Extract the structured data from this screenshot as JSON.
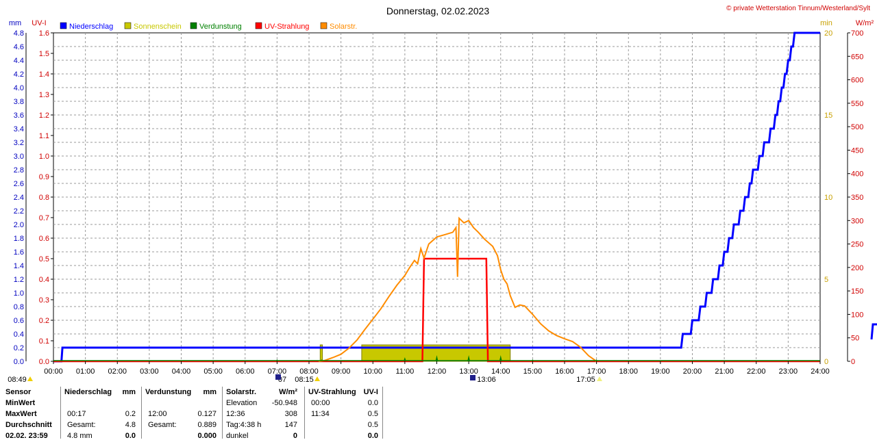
{
  "header": {
    "title": "Donnerstag, 02.02.2023",
    "copyright": "© private Wetterstation Tinnum/Westerland/Sylt"
  },
  "legend": [
    {
      "label": "Niederschlag",
      "color": "#0000ff"
    },
    {
      "label": "Sonnenschein",
      "color": "#c8c800"
    },
    {
      "label": "Verdunstung",
      "color": "#008000"
    },
    {
      "label": "UV-Strahlung",
      "color": "#ff0000"
    },
    {
      "label": "Solarstr.",
      "color": "#ff8c00"
    }
  ],
  "axis_units": {
    "mm": "mm",
    "uv": "UV-I",
    "min": "min",
    "wm2": "W/m²"
  },
  "chart_data": {
    "type": "line",
    "x_range": [
      "00:00",
      "24:00"
    ],
    "x_ticks": [
      "00:00",
      "01:00",
      "02:00",
      "03:00",
      "04:00",
      "05:00",
      "06:00",
      "07:00",
      "08:00",
      "09:00",
      "10:00",
      "11:00",
      "12:00",
      "13:00",
      "14:00",
      "15:00",
      "16:00",
      "17:00",
      "18:00",
      "19:00",
      "20:00",
      "21:00",
      "22:00",
      "23:00",
      "24:00"
    ],
    "axes": {
      "mm": {
        "range": [
          0,
          4.8
        ],
        "ticks": [
          "4.8",
          "4.6",
          "4.4",
          "4.2",
          "4.0",
          "3.8",
          "3.6",
          "3.4",
          "3.2",
          "3.0",
          "2.8",
          "2.6",
          "2.4",
          "2.2",
          "2.0",
          "1.8",
          "1.6",
          "1.4",
          "1.2",
          "1.0",
          "0.8",
          "0.6",
          "0.4",
          "0.2",
          "0.0"
        ]
      },
      "uv": {
        "range": [
          0,
          1.6
        ],
        "ticks": [
          "1.6",
          "1.5",
          "1.4",
          "1.3",
          "1.2",
          "1.1",
          "1.0",
          "0.9",
          "0.8",
          "0.7",
          "0.6",
          "0.5",
          "0.4",
          "0.3",
          "0.2",
          "0.1",
          "0.0"
        ]
      },
      "min": {
        "range": [
          0,
          20
        ],
        "ticks": [
          "20",
          "15",
          "10",
          "5",
          "0"
        ]
      },
      "wm2": {
        "range": [
          0,
          700
        ],
        "ticks": [
          "700",
          "650",
          "600",
          "550",
          "500",
          "450",
          "400",
          "350",
          "300",
          "250",
          "200",
          "150",
          "100",
          "50",
          "0"
        ]
      }
    },
    "grid": true,
    "series": [
      {
        "name": "Niederschlag",
        "axis": "mm",
        "color": "#0000ff",
        "points": [
          [
            0.0,
            0.0
          ],
          [
            0.25,
            0.0
          ],
          [
            0.28,
            0.2
          ],
          [
            19.65,
            0.2
          ],
          [
            19.7,
            0.4
          ],
          [
            19.95,
            0.4
          ],
          [
            20.0,
            0.6
          ],
          [
            20.2,
            0.6
          ],
          [
            20.25,
            0.8
          ],
          [
            20.4,
            0.8
          ],
          [
            20.45,
            1.0
          ],
          [
            20.6,
            1.0
          ],
          [
            20.65,
            1.2
          ],
          [
            20.8,
            1.2
          ],
          [
            20.85,
            1.4
          ],
          [
            20.95,
            1.4
          ],
          [
            21.0,
            1.6
          ],
          [
            21.1,
            1.6
          ],
          [
            21.15,
            1.8
          ],
          [
            21.25,
            1.8
          ],
          [
            21.3,
            2.0
          ],
          [
            21.45,
            2.0
          ],
          [
            21.5,
            2.2
          ],
          [
            21.6,
            2.2
          ],
          [
            21.65,
            2.4
          ],
          [
            21.75,
            2.4
          ],
          [
            21.8,
            2.6
          ],
          [
            21.85,
            2.6
          ],
          [
            21.9,
            2.8
          ],
          [
            22.05,
            2.8
          ],
          [
            22.1,
            3.0
          ],
          [
            22.2,
            3.0
          ],
          [
            22.25,
            3.2
          ],
          [
            22.4,
            3.2
          ],
          [
            22.45,
            3.4
          ],
          [
            22.55,
            3.4
          ],
          [
            22.6,
            3.6
          ],
          [
            22.65,
            3.6
          ],
          [
            22.7,
            3.8
          ],
          [
            22.75,
            3.8
          ],
          [
            22.8,
            4.0
          ],
          [
            22.85,
            4.0
          ],
          [
            22.9,
            4.2
          ],
          [
            22.95,
            4.2
          ],
          [
            23.0,
            4.4
          ],
          [
            23.05,
            4.4
          ],
          [
            23.1,
            4.6
          ],
          [
            23.15,
            4.6
          ],
          [
            23.2,
            4.8
          ],
          [
            24.0,
            4.8
          ]
        ]
      },
      {
        "name": "Sonnenschein",
        "axis": "min",
        "color": "#c8c800",
        "bars": [
          [
            8.35,
            8.42,
            1.0
          ],
          [
            9.65,
            14.3,
            1.0
          ]
        ]
      },
      {
        "name": "Verdunstung",
        "axis": "uv",
        "color": "#008000",
        "spikes": [
          [
            7.0,
            0.01
          ],
          [
            8.4,
            0.01
          ],
          [
            11.0,
            0.02
          ],
          [
            12.0,
            0.03
          ],
          [
            13.0,
            0.03
          ],
          [
            14.0,
            0.03
          ],
          [
            15.0,
            0.01
          ],
          [
            17.0,
            0.005
          ]
        ]
      },
      {
        "name": "UV-Strahlung",
        "axis": "uv",
        "color": "#ff0000",
        "points": [
          [
            0,
            0
          ],
          [
            11.55,
            0
          ],
          [
            11.6,
            0.5
          ],
          [
            13.55,
            0.5
          ],
          [
            13.6,
            0
          ],
          [
            24,
            0
          ]
        ]
      },
      {
        "name": "Solarstr.",
        "axis": "wm2",
        "color": "#ff8c00",
        "points": [
          [
            8.3,
            0
          ],
          [
            8.5,
            2
          ],
          [
            8.75,
            8
          ],
          [
            9.0,
            15
          ],
          [
            9.25,
            28
          ],
          [
            9.5,
            45
          ],
          [
            9.75,
            68
          ],
          [
            10.0,
            90
          ],
          [
            10.25,
            112
          ],
          [
            10.5,
            138
          ],
          [
            10.75,
            162
          ],
          [
            11.0,
            183
          ],
          [
            11.15,
            200
          ],
          [
            11.3,
            215
          ],
          [
            11.4,
            208
          ],
          [
            11.5,
            240
          ],
          [
            11.6,
            220
          ],
          [
            11.75,
            250
          ],
          [
            12.0,
            265
          ],
          [
            12.25,
            270
          ],
          [
            12.5,
            275
          ],
          [
            12.6,
            285
          ],
          [
            12.65,
            180
          ],
          [
            12.7,
            305
          ],
          [
            12.85,
            295
          ],
          [
            13.0,
            300
          ],
          [
            13.15,
            285
          ],
          [
            13.3,
            275
          ],
          [
            13.5,
            260
          ],
          [
            13.75,
            245
          ],
          [
            13.9,
            225
          ],
          [
            14.0,
            195
          ],
          [
            14.1,
            175
          ],
          [
            14.2,
            165
          ],
          [
            14.3,
            140
          ],
          [
            14.45,
            115
          ],
          [
            14.6,
            120
          ],
          [
            14.75,
            118
          ],
          [
            15.0,
            100
          ],
          [
            15.25,
            80
          ],
          [
            15.5,
            65
          ],
          [
            15.75,
            55
          ],
          [
            16.0,
            48
          ],
          [
            16.25,
            42
          ],
          [
            16.5,
            30
          ],
          [
            16.75,
            12
          ],
          [
            17.0,
            0
          ]
        ]
      }
    ]
  },
  "time_markers": [
    {
      "label": "08:49",
      "pos": 0.0
    },
    {
      "label": "07",
      "pos": 7.1
    },
    {
      "label": "08:15",
      "pos": 8.25
    },
    {
      "label": "13:06",
      "pos": 13.1
    },
    {
      "label": "17:05",
      "pos": 17.08
    }
  ],
  "stats": {
    "sensor": {
      "header": "Sensor",
      "rows": [
        "MinWert",
        "MaxWert",
        "Durchschnitt",
        "02.02. 23:59"
      ]
    },
    "niederschlag": {
      "header": "Niederschlag",
      "unit": "mm",
      "rows": [
        [
          "",
          ""
        ],
        [
          "00:17",
          "0.2"
        ],
        [
          "Gesamt:",
          "4.8"
        ],
        [
          "4.8 mm",
          "0.0"
        ]
      ]
    },
    "verdunstung": {
      "header": "Verdunstung",
      "unit": "mm",
      "rows": [
        [
          "",
          ""
        ],
        [
          "12:00",
          "0.127"
        ],
        [
          "Gesamt:",
          "0.889"
        ],
        [
          "",
          "0.000"
        ]
      ]
    },
    "solar": {
      "header": "Solarstr.",
      "unit": "W/m²",
      "rows": [
        [
          "Elevation",
          "-50.948"
        ],
        [
          "12:36",
          "308"
        ],
        [
          "Tag:4:38 h",
          "147"
        ],
        [
          "dunkel",
          "0"
        ]
      ]
    },
    "uv": {
      "header": "UV-Strahlung",
      "unit": "UV-I",
      "rows": [
        [
          "00:00",
          "0.0"
        ],
        [
          "11:34",
          "0.5"
        ],
        [
          "",
          "0.5"
        ],
        [
          "",
          "0.0"
        ]
      ]
    }
  }
}
